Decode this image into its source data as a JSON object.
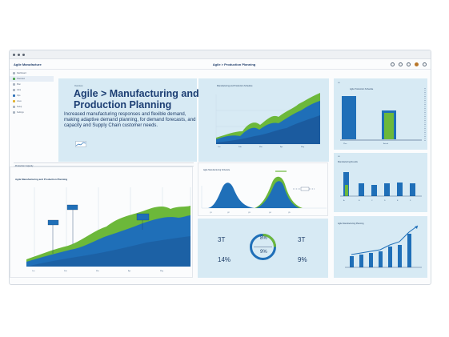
{
  "window": {
    "title": "Agile > Manufacturing Production Planning"
  },
  "appbar": {
    "brand": "Agile Manufacture",
    "title": "Agile > Production Planning"
  },
  "sidebar": {
    "header": "Dashboard",
    "items": [
      {
        "label": "Overview"
      },
      {
        "label": "Plan"
      },
      {
        "label": "Jobs"
      },
      {
        "label": "Ops"
      },
      {
        "label": "Lines"
      },
      {
        "label": "Setup"
      },
      {
        "label": "Settings"
      }
    ]
  },
  "hero": {
    "tag": "Overview",
    "title": "Agile > Manufacturing and Production Planning",
    "text": "Increased manufacturing responses and flexible demand, making adaptive demand planning, for demand forecasts, and capacity and Supply Chain customer needs."
  },
  "main_chart": {
    "title": "Manufacturing and Production Schedule"
  },
  "right_bar": {
    "title": "Agile Production Schedule"
  },
  "right_small": {
    "title": "Manufacturing Results"
  },
  "right_last": {
    "title": "Agile Manufacturing Planning"
  },
  "big_chart": {
    "toolbar": "Production Capacity",
    "title": "Agile Manufacturing and Production Planning"
  },
  "bell_chart": {
    "title": "Agile Manufacturing Schedule"
  },
  "kpi": {
    "top_left": "3T",
    "top_right": "3T",
    "bottom_left": "14%",
    "bottom_right": "9%",
    "center_top": "8%",
    "center_bottom": "9%"
  },
  "colors": {
    "navy": "#1c3e73",
    "blue": "#1f6fb8",
    "green": "#6cb83a",
    "panel": "#d7eaf4"
  }
}
